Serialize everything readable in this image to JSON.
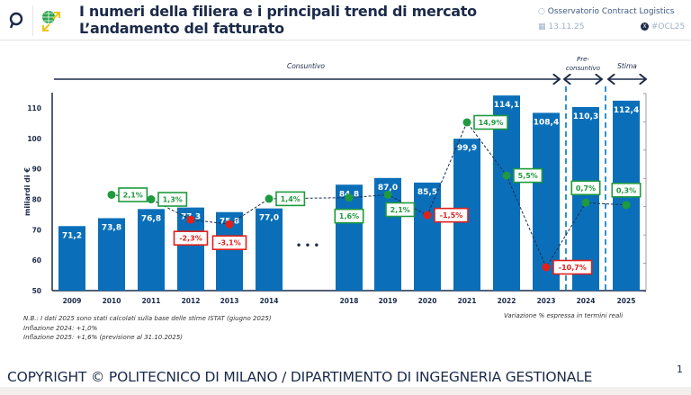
{
  "header": {
    "title_line1": "I numeri della filiera e i principali trend di mercato",
    "title_line2": "L’andamento del fatturato",
    "organization": "Osservatorio Contract Logistics",
    "date": "13.11.25",
    "hashtag": "#OCL25",
    "icons": [
      "search-logo-icon",
      "globe-arrows-icon",
      "calendar-icon",
      "x-logo-icon"
    ]
  },
  "chart_data": {
    "type": "bar",
    "ylabel": "miliardi di €",
    "ylim": [
      50,
      110
    ],
    "yticks": [
      50,
      60,
      70,
      80,
      90,
      100,
      110
    ],
    "y2lim": [
      -15,
      20
    ],
    "grid": false,
    "categories": [
      "2009",
      "2010",
      "2011",
      "2012",
      "2013",
      "2014",
      "2018",
      "2019",
      "2020",
      "2021",
      "2022",
      "2023",
      "2024",
      "2025"
    ],
    "values": [
      71.2,
      73.8,
      76.8,
      77.3,
      75.8,
      77.0,
      84.8,
      87.0,
      85.5,
      99.9,
      114.1,
      108.4,
      110.3,
      112.4
    ],
    "value_labels": [
      "71,2",
      "73,8",
      "76,8",
      "77,3",
      "75,8",
      "77,0",
      "84,8",
      "87,0",
      "85,5",
      "99,9",
      "114,1",
      "108,4",
      "110,3",
      "112,4"
    ],
    "growth_series": {
      "type": "line",
      "style": "dashed",
      "categories": [
        "2010",
        "2011",
        "2012",
        "2013",
        "2014",
        "2018",
        "2019",
        "2020",
        "2021",
        "2022",
        "2023",
        "2024",
        "2025"
      ],
      "values": [
        2.1,
        1.3,
        -2.3,
        -3.1,
        1.4,
        1.6,
        2.1,
        -1.5,
        14.9,
        5.5,
        -10.7,
        0.7,
        0.3
      ],
      "labels": [
        "2,1%",
        "1,3%",
        "-2,3%",
        "-3,1%",
        "1,4%",
        "1,6%",
        "2,1%",
        "-1,5%",
        "14,9%",
        "5,5%",
        "-10,7%",
        "0,7%",
        "0,3%"
      ]
    },
    "gap_marker": "• • •",
    "periods": [
      {
        "label": "Consuntivo",
        "from": "2009",
        "to": "2023"
      },
      {
        "label": "Pre-consuntivo",
        "from": "2024",
        "to": "2024"
      },
      {
        "label": "Stima",
        "from": "2025",
        "to": "2025"
      }
    ],
    "colors": {
      "bar": "#0a6fb8",
      "positive": "#1f9a3e",
      "negative": "#e0201b",
      "axis": "#1b2a4a",
      "divider": "#1a86d0"
    }
  },
  "notes": [
    "N.B.: I dati 2025 sono stati calcolati sulla base delle stime ISTAT (giugno 2025)",
    "Inflazione 2024: +1,0%",
    "Inflazione 2025: +1,6% (previsione al 31.10.2025)"
  ],
  "variation_note": "Variazione % espressa in termini reali",
  "footer": {
    "copyright": "COPYRIGHT © POLITECNICO DI MILANO / DIPARTIMENTO DI INGEGNERIA GESTIONALE",
    "page_number": "1"
  }
}
